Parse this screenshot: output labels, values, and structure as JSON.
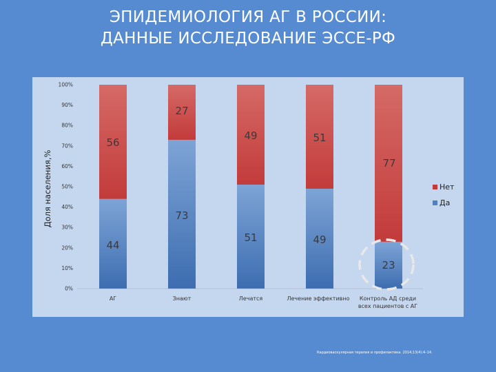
{
  "title": {
    "line1": "ЭПИДЕМИОЛОГИЯ АГ В РОССИИ:",
    "line2": "ДАННЫЕ ИССЛЕДОВАНИЕ ЭССЕ-РФ"
  },
  "source": "Кардиоваскулярная терапия и профилактика. 2014;13(4):4–14.",
  "colors": {
    "background": "#568bd2",
    "plot_area": "#c5d7ee",
    "net": "#c23b3b",
    "da": "#4f81bd",
    "highlight_circle": "#e8e8e8"
  },
  "chart_data": {
    "type": "bar",
    "stacked": true,
    "percent": true,
    "categories": [
      "АГ",
      "Знают",
      "Лечатся",
      "Лечение эффективно",
      "Контроль АД среди всех пациентов с АГ"
    ],
    "series": [
      {
        "name": "Да",
        "values": [
          44,
          73,
          51,
          49,
          23
        ]
      },
      {
        "name": "Нет",
        "values": [
          56,
          27,
          49,
          51,
          77
        ]
      }
    ],
    "ylabel": "Доля населения,%",
    "xlabel": "",
    "ylim": [
      0,
      100
    ],
    "yticks": [
      "0%",
      "10%",
      "20%",
      "30%",
      "40%",
      "50%",
      "60%",
      "70%",
      "80%",
      "90%",
      "100%"
    ],
    "legend": [
      "Нет",
      "Да"
    ],
    "legend_position": "right",
    "grid": false,
    "highlighted_category": "Контроль АД среди всех пациентов с АГ"
  }
}
